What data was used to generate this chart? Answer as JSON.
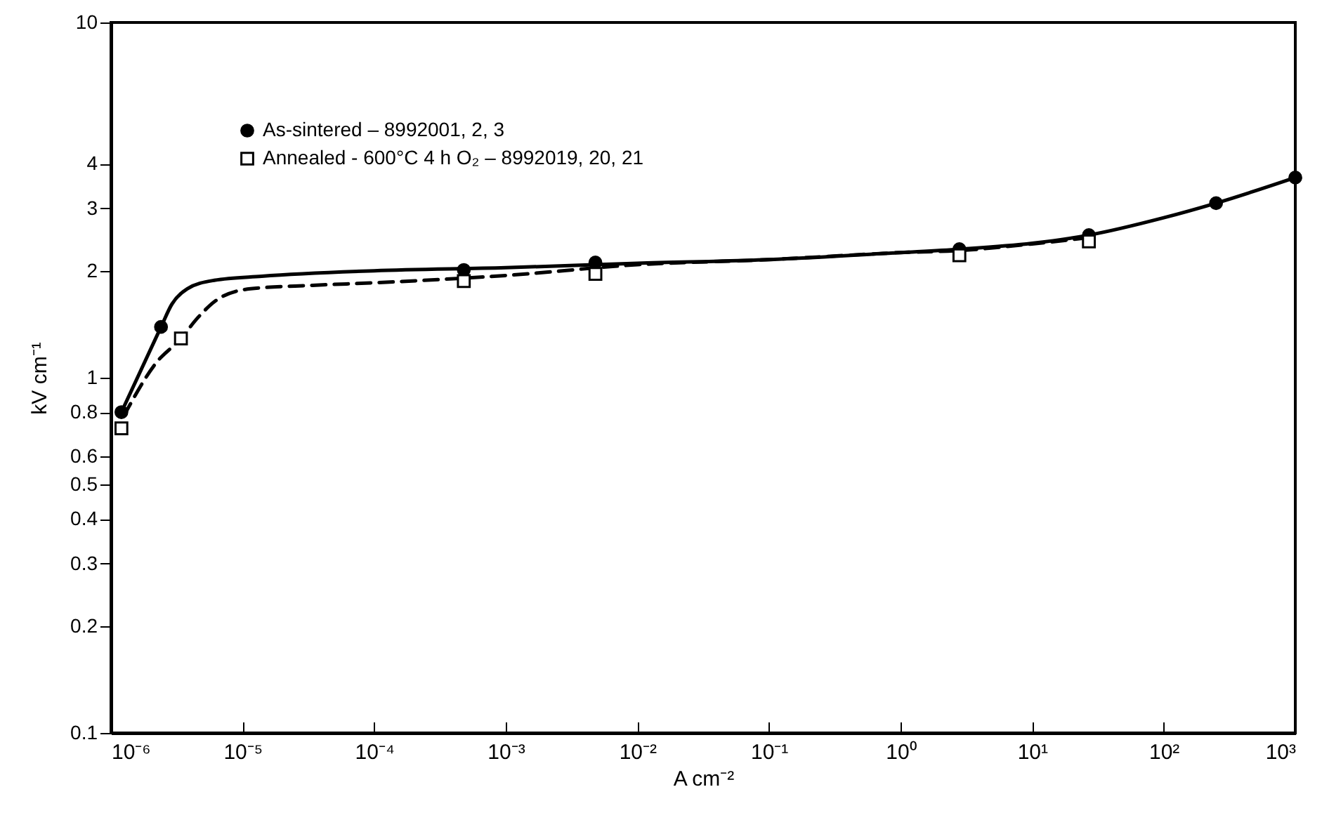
{
  "chart_data": {
    "type": "scatter",
    "xlabel": "A cm⁻²",
    "ylabel": "kV cm⁻¹",
    "log": "xy",
    "grid": false,
    "legend": "top left",
    "xlim": [
      1e-06,
      1000
    ],
    "ylim": [
      0.1,
      10
    ],
    "xticks": [
      {
        "value": 1e-06,
        "label": "10⁻⁶"
      },
      {
        "value": 1e-05,
        "label": "10⁻⁵"
      },
      {
        "value": 0.0001,
        "label": "10⁻⁴"
      },
      {
        "value": 0.001,
        "label": "10⁻³"
      },
      {
        "value": 0.01,
        "label": "10⁻²"
      },
      {
        "value": 0.1,
        "label": "10⁻¹"
      },
      {
        "value": 1,
        "label": "10⁰"
      },
      {
        "value": 10,
        "label": "10¹"
      },
      {
        "value": 100,
        "label": "10²"
      },
      {
        "value": 1000,
        "label": "10³"
      }
    ],
    "yticks": [
      0.1,
      0.2,
      0.3,
      0.4,
      0.5,
      0.6,
      0.8,
      1,
      2,
      3,
      4,
      10
    ],
    "series": [
      {
        "type": "line",
        "line_style": "solid",
        "color": "#000000",
        "x": [
          1.2e-06,
          2.4e-06,
          2.9e-06,
          3.8e-06,
          6.1e-06,
          1.4e-05,
          0.0001,
          0.001,
          0.01,
          0.1,
          1,
          2.8,
          10,
          27,
          100,
          250,
          1000
        ],
        "values": [
          0.8,
          1.39,
          1.61,
          1.78,
          1.88,
          1.93,
          2.0,
          2.04,
          2.1,
          2.15,
          2.25,
          2.3,
          2.39,
          2.52,
          2.82,
          3.1,
          3.66
        ]
      },
      {
        "type": "line",
        "line_style": "dashed",
        "color": "#000000",
        "x": [
          1.25e-06,
          2.2e-06,
          3.4e-06,
          4.6e-06,
          6.6e-06,
          1.15e-05,
          3.4e-05,
          0.0001,
          0.001,
          0.01,
          0.1,
          1,
          2.8,
          10,
          27
        ],
        "values": [
          0.78,
          1.1,
          1.29,
          1.48,
          1.67,
          1.78,
          1.82,
          1.85,
          1.94,
          2.08,
          2.15,
          2.25,
          2.28,
          2.38,
          2.48
        ]
      },
      {
        "name": "As-sintered – 8992001, 2, 3",
        "marker": "circle",
        "color": "#000000",
        "x": [
          1.2e-06,
          2.4e-06,
          0.00048,
          0.0048,
          2.8,
          27,
          250,
          1000
        ],
        "values": [
          0.8,
          1.39,
          2.01,
          2.11,
          2.3,
          2.52,
          3.1,
          3.66
        ]
      },
      {
        "name": "Annealed - 600°C 4 h O₂ – 8992019, 20, 21",
        "marker": "square",
        "color": "#000000",
        "x": [
          1.2e-06,
          3.4e-06,
          0.00048,
          0.0048,
          2.8,
          27
        ],
        "values": [
          0.72,
          1.29,
          1.87,
          1.96,
          2.21,
          2.42
        ]
      }
    ]
  }
}
